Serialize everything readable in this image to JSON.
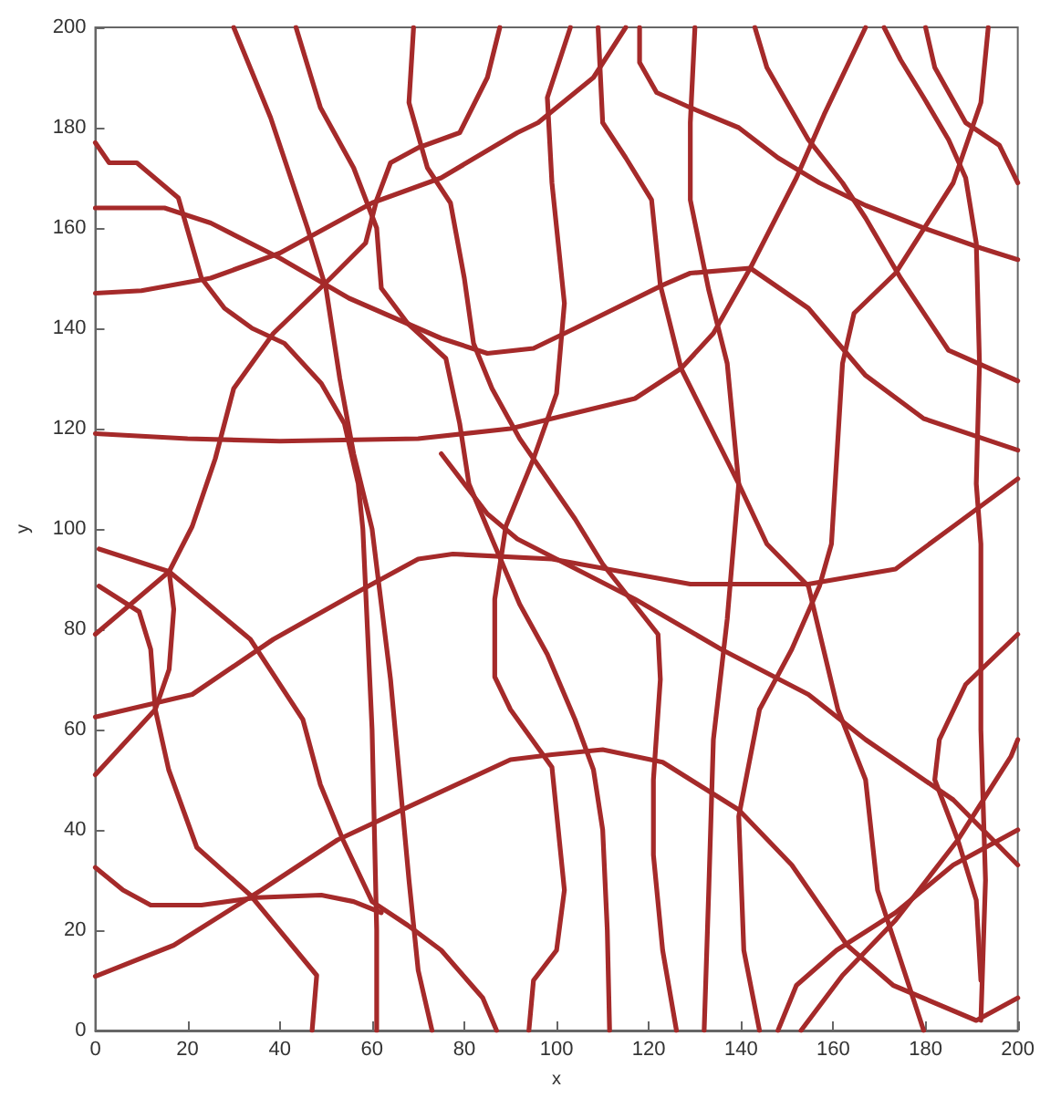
{
  "chart_data": {
    "type": "line",
    "xlabel": "x",
    "ylabel": "y",
    "xlim": [
      0,
      200
    ],
    "ylim": [
      0,
      200
    ],
    "xticks": [
      0,
      20,
      40,
      60,
      80,
      100,
      120,
      140,
      160,
      180,
      200
    ],
    "yticks": [
      0,
      20,
      40,
      60,
      80,
      100,
      120,
      140,
      160,
      180,
      200
    ],
    "grid": false,
    "marker": "none",
    "line_style": "solid",
    "series": [
      {
        "color": "#a52a2a",
        "x": [
          0,
          20,
          40,
          70,
          90,
          117,
          127,
          134,
          142,
          152,
          158,
          167
        ],
        "values": [
          119,
          118,
          117.5,
          118,
          120,
          126,
          132,
          139,
          152,
          170,
          182.6,
          200
        ]
      },
      {
        "color": "#a52a2a",
        "x": [
          0,
          10,
          25,
          40,
          50,
          60,
          75,
          91.5,
          96,
          108,
          115
        ],
        "values": [
          147,
          147.5,
          150,
          155,
          160,
          165,
          170,
          179,
          181,
          190,
          200
        ]
      },
      {
        "color": "#a52a2a",
        "x": [
          0,
          15,
          25,
          40,
          55,
          65,
          75,
          85,
          95,
          104,
          123,
          129,
          142,
          154.6,
          167,
          179.6,
          200
        ],
        "values": [
          164,
          164,
          161,
          154,
          146,
          142,
          138,
          135,
          136,
          140,
          148.6,
          151,
          152,
          144,
          130.6,
          122,
          115.7
        ]
      },
      {
        "color": "#a52a2a",
        "x": [
          0,
          3,
          9,
          18,
          23,
          28,
          34,
          41,
          49,
          54,
          57,
          58,
          59,
          60,
          60.5,
          61,
          61
        ],
        "values": [
          177,
          173,
          173,
          166,
          150,
          144,
          140,
          137,
          129,
          121,
          109,
          100,
          80,
          60,
          40,
          20,
          0
        ]
      },
      {
        "color": "#a52a2a",
        "x": [
          30,
          38,
          46,
          50,
          53,
          56,
          60,
          62,
          64,
          66,
          68,
          70,
          73
        ],
        "values": [
          200,
          182,
          160,
          148,
          130,
          115,
          100,
          85,
          70,
          50,
          30,
          12,
          0
        ]
      },
      {
        "color": "#a52a2a",
        "x": [
          43.5,
          48.8,
          56,
          61,
          62,
          67.7,
          76,
          79,
          81,
          86,
          92,
          98,
          104,
          108,
          110,
          111,
          111.5
        ],
        "values": [
          200,
          184,
          172,
          160,
          148,
          141,
          134,
          121,
          109,
          98,
          85,
          75,
          62,
          52,
          40,
          20,
          0
        ]
      },
      {
        "color": "#a52a2a",
        "x": [
          69,
          68,
          72,
          77,
          80,
          82,
          86,
          92,
          98,
          104,
          110,
          116,
          122,
          122.5,
          121,
          121,
          123,
          126
        ],
        "values": [
          200,
          185,
          172,
          165,
          150,
          137,
          128,
          118,
          110,
          102,
          93,
          86,
          79,
          70,
          50,
          35,
          16,
          0
        ]
      },
      {
        "color": "#a52a2a",
        "x": [
          0.8,
          16,
          33.6,
          45,
          48.8,
          53.7,
          60,
          67.7,
          75,
          84,
          87
        ],
        "values": [
          96,
          91.5,
          78,
          62,
          49,
          38,
          25.7,
          21,
          16,
          6.5,
          0
        ]
      },
      {
        "color": "#a52a2a",
        "x": [
          0,
          21,
          38.6,
          56,
          70,
          77.5,
          99,
          129,
          154.6,
          173.5,
          186,
          200
        ],
        "values": [
          62.5,
          67,
          78,
          87,
          94,
          95,
          94,
          89,
          89,
          92,
          100.5,
          110
        ]
      },
      {
        "color": "#a52a2a",
        "x": [
          0,
          16,
          21,
          26,
          30,
          38.6,
          51,
          58.6,
          61,
          64,
          70,
          79,
          85,
          87.7
        ],
        "values": [
          79,
          91.5,
          100.5,
          114,
          128,
          139,
          150,
          157,
          165.6,
          173,
          176,
          179,
          190,
          200
        ]
      },
      {
        "color": "#a52a2a",
        "x": [
          0.8,
          9.5,
          12,
          13,
          15.9,
          22,
          33.6,
          43.5,
          48,
          47
        ],
        "values": [
          88.6,
          83.5,
          76,
          64,
          52,
          36.5,
          27,
          16,
          11,
          0
        ]
      },
      {
        "color": "#a52a2a",
        "x": [
          0,
          6,
          12,
          23,
          35,
          49,
          56,
          62
        ],
        "values": [
          32.5,
          28,
          25,
          25,
          26.5,
          27,
          25.7,
          23.5
        ]
      },
      {
        "color": "#a52a2a",
        "x": [
          0,
          17,
          36,
          52.5,
          66,
          90,
          99,
          110,
          123,
          139.5,
          151,
          163,
          173,
          191,
          200
        ],
        "values": [
          10.8,
          17,
          28,
          38,
          43.8,
          54,
          55,
          56,
          53.5,
          44,
          33,
          17,
          9,
          2,
          6.5
        ]
      },
      {
        "color": "#a52a2a",
        "x": [
          130,
          129,
          129,
          133,
          137,
          139.5,
          137,
          134,
          133,
          132
        ],
        "values": [
          200,
          181,
          165.6,
          147.6,
          133,
          109,
          82,
          58,
          28,
          0
        ]
      },
      {
        "color": "#a52a2a",
        "x": [
          118,
          118,
          121.7,
          129,
          139.5,
          148,
          157,
          167,
          179.6,
          192,
          200
        ],
        "values": [
          200,
          193,
          187,
          184,
          180,
          174,
          169,
          164.5,
          160,
          156,
          153.7
        ]
      },
      {
        "color": "#a52a2a",
        "x": [
          109,
          110,
          115,
          120.6,
          122.5,
          127,
          139.5,
          145.6,
          154.6,
          161,
          167,
          169.6,
          179.6
        ],
        "values": [
          200,
          181,
          174,
          165.6,
          148.6,
          132,
          109,
          97,
          88.6,
          64,
          50,
          28,
          0
        ]
      },
      {
        "color": "#a52a2a",
        "x": [
          143,
          145.6,
          154.6,
          162,
          167,
          174.6,
          185,
          200
        ],
        "values": [
          200,
          192,
          177.6,
          169,
          162,
          150,
          135.6,
          129.5
        ]
      },
      {
        "color": "#a52a2a",
        "x": [
          171,
          174.6,
          179.6,
          185,
          188.7,
          191,
          191.7,
          191,
          192,
          192,
          193,
          192
        ],
        "values": [
          200,
          193.5,
          186,
          177.6,
          170,
          157,
          133,
          109,
          97,
          60,
          30,
          2
        ]
      },
      {
        "color": "#a52a2a",
        "x": [
          180,
          182,
          188.7,
          196,
          200
        ],
        "values": [
          200,
          192,
          181,
          176.5,
          169
        ]
      },
      {
        "color": "#a52a2a",
        "x": [
          193.6,
          192,
          186,
          173.5,
          164.5,
          162,
          159.6,
          157,
          151,
          144,
          139.5,
          140.6,
          144
        ],
        "values": [
          200,
          185,
          169,
          151,
          143,
          133,
          97,
          88.6,
          76,
          64,
          42.7,
          16,
          0
        ]
      },
      {
        "color": "#a52a2a",
        "x": [
          103,
          98,
          99,
          101.7,
          100,
          95,
          89,
          86.6,
          86.6,
          90,
          99,
          101.7,
          100,
          95,
          94
        ],
        "values": [
          200,
          186,
          169,
          145,
          127,
          114,
          100.5,
          86,
          70.5,
          64,
          52.5,
          28,
          16,
          10,
          0
        ]
      },
      {
        "color": "#a52a2a",
        "x": [
          148,
          152,
          160.7,
          173.5,
          186,
          200
        ],
        "values": [
          0,
          9,
          16,
          23.5,
          33,
          40
        ]
      },
      {
        "color": "#a52a2a",
        "x": [
          153,
          162,
          173.5,
          187,
          198.5,
          200
        ],
        "values": [
          0,
          11,
          22,
          38,
          54.6,
          58
        ]
      },
      {
        "color": "#a52a2a",
        "x": [
          200,
          188.7,
          183,
          182,
          187,
          191,
          192
        ],
        "values": [
          79,
          69,
          58,
          50,
          38,
          26,
          10
        ]
      },
      {
        "color": "#a52a2a",
        "x": [
          75,
          85,
          91.5,
          117,
          135.7,
          154.6,
          167,
          186,
          200
        ],
        "values": [
          115,
          103,
          98,
          86,
          76,
          67,
          58,
          46,
          33
        ]
      },
      {
        "color": "#a52a2a",
        "x": [
          0,
          6,
          13,
          16,
          17,
          16
        ],
        "values": [
          51,
          57,
          64,
          72,
          84,
          91.5
        ]
      }
    ]
  }
}
